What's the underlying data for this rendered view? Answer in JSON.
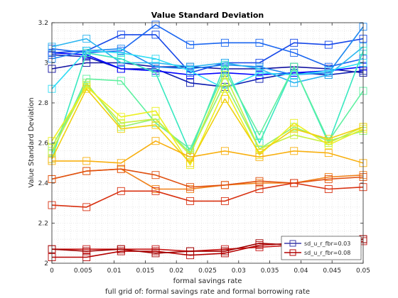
{
  "chart_data": {
    "type": "line",
    "title": "Value Standard Deviation",
    "xlabel": "formal savings rate",
    "ylabel": "Value Standard Deviation",
    "caption": "full grid of: formal savings rate and formal borrowing rate",
    "xlim": [
      0,
      0.05
    ],
    "ylim": [
      2,
      3.2
    ],
    "xticks": [
      0,
      0.005,
      0.01,
      0.015,
      0.02,
      0.025,
      0.03,
      0.035,
      0.04,
      0.045,
      0.05
    ],
    "xtick_labels": [
      "0",
      "0.005",
      "0.01",
      "0.015",
      "0.02",
      "0.025",
      "0.03",
      "0.035",
      "0.04",
      "0.045",
      "0.05"
    ],
    "yticks": [
      2,
      2.2,
      2.4,
      2.6,
      2.8,
      3,
      3.2
    ],
    "ytick_labels": [
      "2",
      "2.2",
      "2.4",
      "2.6",
      "2.8",
      "3",
      "3.2"
    ],
    "grid": "minor dotted",
    "marker": "square",
    "legend": {
      "placement": "bottom-right",
      "entries": [
        {
          "label": "sd_u_r_fbr=0.03",
          "color": "#3a3aaa"
        },
        {
          "label": "sd_u_r_fbr=0.08",
          "color": "#b00000"
        }
      ]
    },
    "x": [
      0,
      0.00278,
      0.00556,
      0.00833,
      0.01111,
      0.01389,
      0.01667,
      0.01944,
      0.02222,
      0.025,
      0.02778,
      0.03056,
      0.03333,
      0.03611,
      0.03889,
      0.04167,
      0.04444,
      0.04722,
      0.05
    ],
    "series": [
      {
        "color": "#1010a0",
        "values": [
          2.97,
          null,
          3.0,
          null,
          3.0,
          null,
          2.98,
          null,
          2.98,
          null,
          2.97,
          null,
          2.97,
          null,
          2.98,
          null,
          2.97,
          null,
          2.95
        ]
      },
      {
        "color": "#0a1ab0",
        "values": [
          3.04,
          null,
          3.03,
          null,
          2.97,
          null,
          2.97,
          null,
          2.9,
          null,
          2.88,
          null,
          2.92,
          null,
          2.95,
          null,
          2.94,
          null,
          2.96
        ]
      },
      {
        "color": "#0000ff",
        "values": [
          3.05,
          null,
          3.04,
          null,
          2.97,
          null,
          2.96,
          null,
          2.94,
          null,
          2.95,
          null,
          2.94,
          null,
          2.95,
          null,
          2.96,
          null,
          2.98
        ]
      },
      {
        "color": "#1446e8",
        "values": [
          3.05,
          null,
          3.06,
          null,
          3.14,
          null,
          3.14,
          null,
          2.95,
          null,
          3.0,
          null,
          3.0,
          null,
          3.1,
          null,
          3.09,
          null,
          3.12
        ]
      },
      {
        "color": "#1a66f0",
        "values": [
          3.07,
          null,
          3.05,
          null,
          3.06,
          null,
          3.19,
          null,
          3.09,
          null,
          3.1,
          null,
          3.1,
          null,
          3.05,
          null,
          2.98,
          null,
          3.02
        ]
      },
      {
        "color": "#1e88f0",
        "values": [
          3.02,
          null,
          3.06,
          null,
          3.07,
          null,
          2.98,
          null,
          2.97,
          null,
          2.99,
          null,
          2.98,
          null,
          2.94,
          null,
          2.95,
          null,
          3.18
        ]
      },
      {
        "color": "#28b4f0",
        "values": [
          3.08,
          null,
          3.12,
          null,
          3.0,
          null,
          3.0,
          null,
          2.98,
          null,
          3.0,
          null,
          2.97,
          null,
          2.9,
          null,
          2.94,
          null,
          3.08
        ]
      },
      {
        "color": "#30dcf4",
        "values": [
          2.87,
          null,
          3.06,
          null,
          3.05,
          null,
          3.02,
          null,
          2.96,
          null,
          2.87,
          null,
          2.95,
          null,
          2.94,
          null,
          2.96,
          null,
          3.0
        ]
      },
      {
        "color": "#38e8c0",
        "values": [
          2.52,
          null,
          3.05,
          null,
          3.02,
          null,
          2.95,
          null,
          2.55,
          null,
          2.99,
          null,
          2.6,
          null,
          2.98,
          null,
          2.6,
          null,
          3.06
        ]
      },
      {
        "color": "#5ef0a0",
        "values": [
          2.55,
          null,
          2.92,
          null,
          2.91,
          null,
          2.7,
          null,
          2.57,
          null,
          2.96,
          null,
          2.64,
          null,
          2.98,
          null,
          2.61,
          null,
          2.86
        ]
      },
      {
        "color": "#90f070",
        "values": [
          2.58,
          null,
          2.9,
          null,
          2.68,
          null,
          2.72,
          null,
          2.55,
          null,
          2.9,
          null,
          2.57,
          null,
          2.68,
          null,
          2.61,
          null,
          2.66
        ]
      },
      {
        "color": "#c8f040",
        "values": [
          2.56,
          null,
          2.89,
          null,
          2.7,
          null,
          2.72,
          null,
          2.54,
          null,
          2.94,
          null,
          2.57,
          null,
          2.64,
          null,
          2.6,
          null,
          2.68
        ]
      },
      {
        "color": "#ecf020",
        "values": [
          2.61,
          null,
          2.88,
          null,
          2.73,
          null,
          2.76,
          null,
          2.49,
          null,
          2.87,
          null,
          2.54,
          null,
          2.7,
          null,
          2.59,
          null,
          2.67
        ]
      },
      {
        "color": "#f0d010",
        "values": [
          2.52,
          null,
          2.87,
          null,
          2.67,
          null,
          2.69,
          null,
          2.5,
          null,
          2.82,
          null,
          2.55,
          null,
          2.67,
          null,
          2.62,
          null,
          2.68
        ]
      },
      {
        "color": "#f8b010",
        "values": [
          2.51,
          null,
          2.51,
          null,
          2.5,
          null,
          2.61,
          null,
          2.53,
          null,
          2.56,
          null,
          2.53,
          null,
          2.56,
          null,
          2.55,
          null,
          2.5
        ]
      },
      {
        "color": "#f08018",
        "values": [
          2.42,
          null,
          2.46,
          null,
          2.47,
          null,
          2.37,
          null,
          2.37,
          null,
          2.39,
          null,
          2.4,
          null,
          2.4,
          null,
          2.43,
          null,
          2.44
        ]
      },
      {
        "color": "#e05010",
        "values": [
          2.42,
          null,
          2.46,
          null,
          2.47,
          null,
          2.44,
          null,
          2.38,
          null,
          2.39,
          null,
          2.41,
          null,
          2.4,
          null,
          2.42,
          null,
          2.43
        ]
      },
      {
        "color": "#d83010",
        "values": [
          2.29,
          null,
          2.28,
          null,
          2.36,
          null,
          2.36,
          null,
          2.31,
          null,
          2.31,
          null,
          2.37,
          null,
          2.4,
          null,
          2.37,
          null,
          2.38
        ]
      },
      {
        "color": "#c81818",
        "values": [
          2.07,
          null,
          2.07,
          null,
          2.07,
          null,
          2.07,
          null,
          2.06,
          null,
          2.07,
          null,
          2.08,
          null,
          2.09,
          null,
          2.09,
          null,
          2.11
        ]
      },
      {
        "color": "#b40000",
        "values": [
          2.03,
          null,
          2.03,
          null,
          2.06,
          null,
          2.06,
          null,
          2.04,
          null,
          2.05,
          null,
          2.09,
          null,
          2.1,
          null,
          2.1,
          null,
          2.12
        ]
      },
      {
        "color": "#a00000",
        "values": [
          2.07,
          null,
          2.06,
          null,
          2.07,
          null,
          2.05,
          null,
          2.06,
          null,
          2.06,
          null,
          2.1,
          null,
          2.09,
          null,
          2.11,
          null,
          2.12
        ]
      }
    ]
  }
}
